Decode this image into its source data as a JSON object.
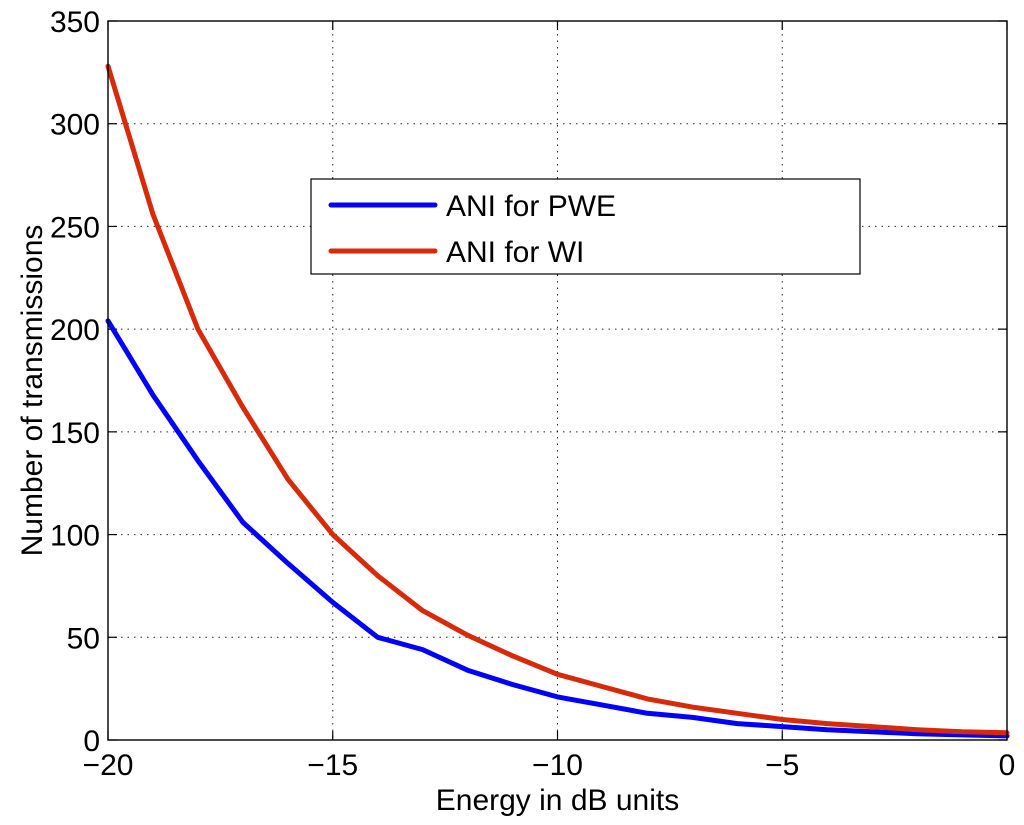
{
  "chart_data": {
    "type": "line",
    "title": "",
    "xlabel": "Energy in dB units",
    "ylabel": "Number of transmissions",
    "xlim": [
      -20,
      0
    ],
    "ylim": [
      0,
      350
    ],
    "xticks": [
      -20,
      -15,
      -10,
      -5,
      0
    ],
    "xtick_labels": [
      "−20",
      "−15",
      "−10",
      "−5",
      "0"
    ],
    "yticks": [
      0,
      50,
      100,
      150,
      200,
      250,
      300,
      350
    ],
    "ytick_labels": [
      "0",
      "50",
      "100",
      "150",
      "200",
      "250",
      "300",
      "350"
    ],
    "grid": true,
    "legend_position": "upper-center",
    "x": [
      -20,
      -19,
      -18,
      -17,
      -16,
      -15,
      -14,
      -13,
      -12,
      -11,
      -10,
      -9,
      -8,
      -7,
      -6,
      -5,
      -4,
      -3,
      -2,
      -1,
      0
    ],
    "series": [
      {
        "name": "ANI for PWE",
        "color": "#0000ff",
        "x": [
          -20,
          -19,
          -18,
          -17,
          -16,
          -15,
          -14,
          -13,
          -12,
          -11,
          -10,
          -9,
          -8,
          -7,
          -6,
          -5,
          -4,
          -3,
          -2,
          -1,
          0
        ],
        "values": [
          204,
          168,
          136,
          106,
          86,
          67,
          50,
          44,
          34,
          27,
          21,
          17,
          13,
          11,
          8,
          6.5,
          5,
          4,
          3,
          2.5,
          2
        ]
      },
      {
        "name": "ANI for WI",
        "color": "#d62a0a",
        "x": [
          -20,
          -19,
          -18,
          -17,
          -16,
          -15,
          -14,
          -13,
          -12,
          -11,
          -10,
          -9,
          -8,
          -7,
          -6,
          -5,
          -4,
          -3,
          -2,
          -1,
          0
        ],
        "values": [
          328,
          256,
          200,
          162,
          127,
          100,
          80,
          63,
          51,
          41,
          32,
          26,
          20,
          16,
          13,
          10,
          8,
          6.5,
          5,
          4,
          3.5
        ]
      }
    ]
  }
}
